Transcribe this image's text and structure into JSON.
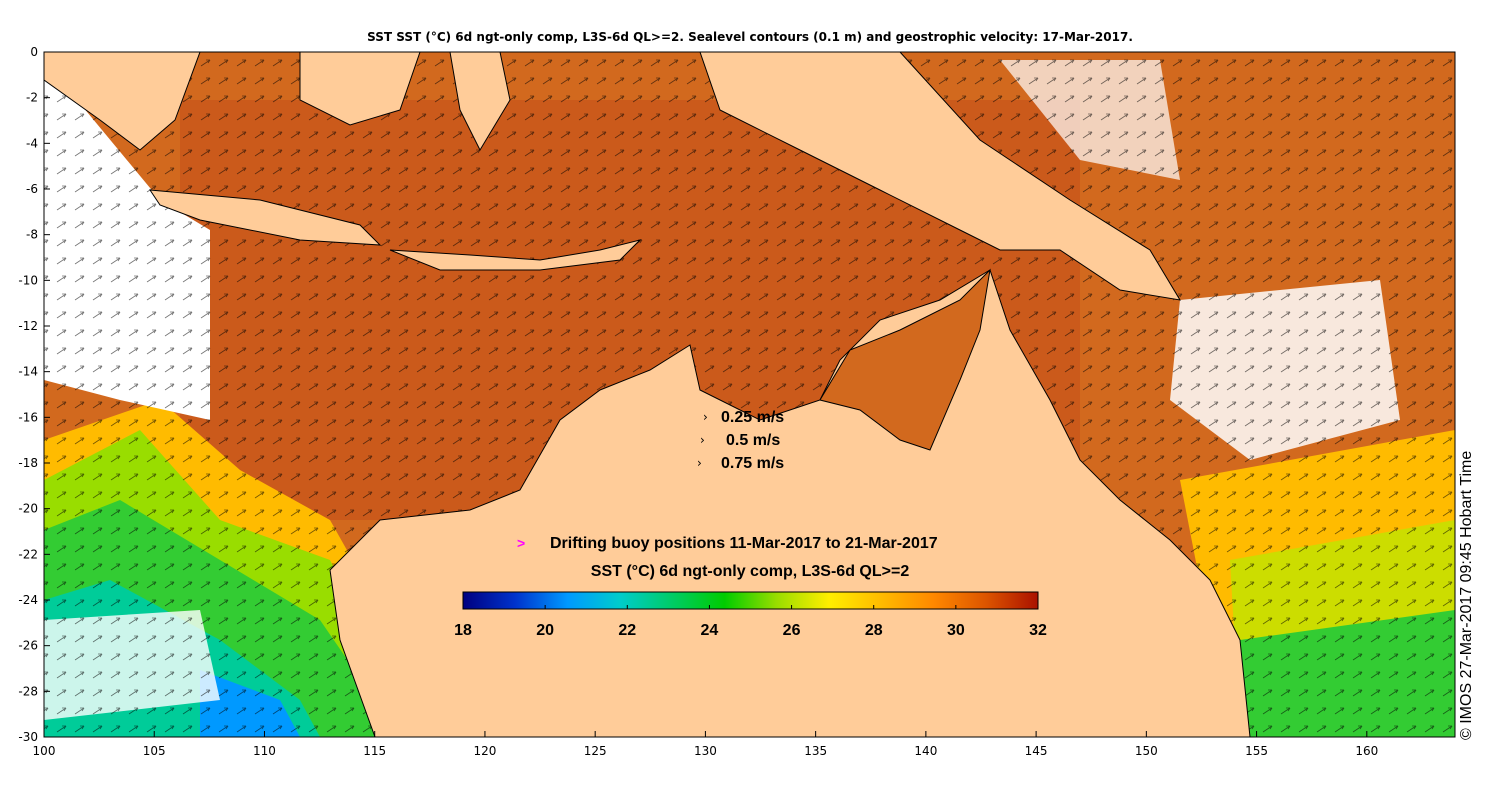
{
  "title": "SST SST (°C) 6d ngt-only comp, L3S-6d QL>=2. Sealevel contours (0.1 m) and geostrophic velocity: 17-Mar-2017.",
  "map": {
    "lon_range": [
      100,
      164
    ],
    "lat_range": [
      -30,
      0
    ],
    "x_ticks": [
      "100",
      "105",
      "110",
      "115",
      "120",
      "125",
      "130",
      "135",
      "140",
      "145",
      "150",
      "155",
      "160"
    ],
    "y_ticks": [
      "0",
      "-2",
      "-4",
      "-6",
      "-8",
      "-10",
      "-12",
      "-14",
      "-16",
      "-18",
      "-20",
      "-22",
      "-24",
      "-26",
      "-28",
      "-30"
    ],
    "land_color": "#ffcc99",
    "velocity_legend": [
      {
        "label": "0.25 m/s"
      },
      {
        "label": "0.5 m/s"
      },
      {
        "label": "0.75 m/s"
      }
    ],
    "buoy_legend": {
      "symbol": ">",
      "label": "Drifting buoy positions 11-Mar-2017 to 21-Mar-2017",
      "color": "#ff00ff"
    },
    "colorbar": {
      "title": "SST (°C) 6d ngt-only comp, L3S-6d QL>=2",
      "min": 18,
      "max": 32,
      "tick_labels": [
        "18",
        "20",
        "22",
        "24",
        "26",
        "28",
        "30",
        "32"
      ],
      "colors": [
        "#000080",
        "#0033cc",
        "#0099ff",
        "#00cccc",
        "#00cc66",
        "#00cc00",
        "#99dd00",
        "#ffee00",
        "#ffbb00",
        "#ff8800",
        "#dd5500",
        "#aa1100"
      ]
    },
    "credit": "© IMOS 27-Mar-2017 09:45 Hobart Time"
  }
}
